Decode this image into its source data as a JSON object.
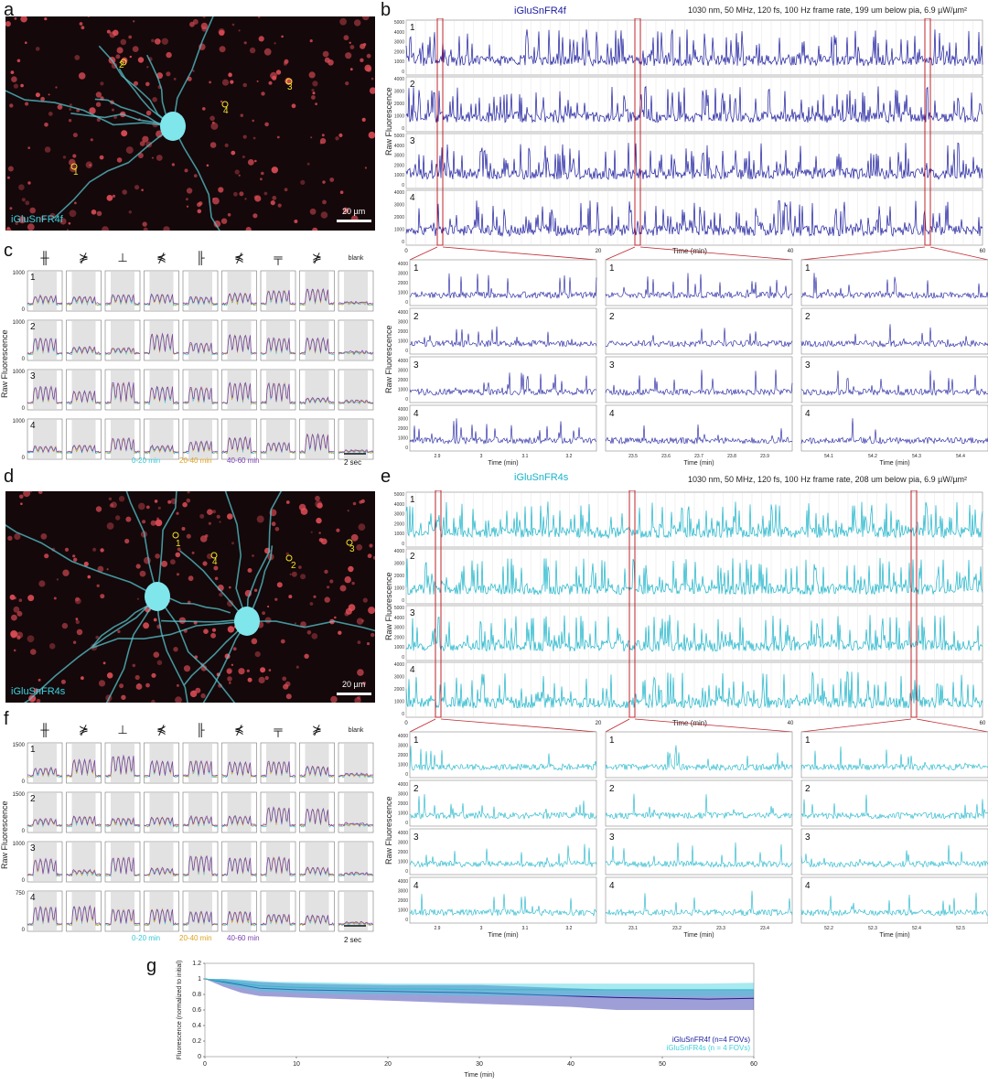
{
  "panels": {
    "a": "a",
    "b": "b",
    "c": "c",
    "d": "d",
    "e": "e",
    "f": "f",
    "g": "g"
  },
  "panel_a": {
    "label": "iGluSnFR4f",
    "scale": "20 µm",
    "rois": [
      "1",
      "2",
      "3",
      "4"
    ]
  },
  "panel_d": {
    "label": "iGluSnFR4s",
    "scale": "20 µm",
    "rois": [
      "1",
      "2",
      "3",
      "4"
    ]
  },
  "panel_b": {
    "title": "iGluSnFR4f",
    "title_color": "#1a1a9e",
    "header": "1030 nm, 50 MHz, 120 fs, 100 Hz frame rate, 199 um below pia, 6.9 µW/µm²",
    "ylabel": "Raw Fluorescence",
    "xlabel": "Time (min)",
    "xticks": [
      "0",
      "20",
      "40",
      "60"
    ],
    "rows": [
      "1",
      "2",
      "3",
      "4"
    ],
    "zoom_xlabel": "Time (min)",
    "zoom_ticks": [
      [
        "2.9",
        "3",
        "3.1",
        "3.2"
      ],
      [
        "23.5",
        "23.6",
        "23.7",
        "23.8",
        "23.9"
      ],
      [
        "54.1",
        "54.2",
        "54.3",
        "54.4"
      ]
    ]
  },
  "panel_e": {
    "title": "iGluSnFR4s",
    "title_color": "#19b3c9",
    "header": "1030 nm, 50 MHz, 120 fs, 100 Hz frame rate, 208 um below pia, 6.9 µW/µm²",
    "ylabel": "Raw Fluorescence",
    "xlabel": "Time (min)",
    "xticks": [
      "0",
      "20",
      "40",
      "60"
    ],
    "rows": [
      "1",
      "2",
      "3",
      "4"
    ],
    "zoom_xlabel": "Time (min)",
    "zoom_ticks": [
      [
        "2.9",
        "3",
        "3.1",
        "3.2"
      ],
      [
        "23.1",
        "23.2",
        "23.3",
        "23.4"
      ],
      [
        "52.2",
        "52.3",
        "52.4",
        "52.5"
      ]
    ]
  },
  "panel_c": {
    "ylabel": "Raw Fluorescence",
    "stimuli": [
      "╫",
      "⋡",
      "⊥",
      "⋠",
      "╟",
      "⋠",
      "╤",
      "⋡"
    ],
    "blank": "blank",
    "rows": [
      "1",
      "2",
      "3",
      "4"
    ],
    "ytick": [
      "1000",
      "1000",
      "1000",
      "1000"
    ],
    "legend": [
      "0-20 min",
      "20-40 min",
      "40-60 min"
    ],
    "legend_colors": [
      "#35c9d6",
      "#e0a21e",
      "#7a3fb3"
    ],
    "scalebar": "2 sec"
  },
  "panel_f": {
    "ylabel": "Raw Fluorescence",
    "stimuli": [
      "╫",
      "⋡",
      "⊥",
      "⋠",
      "╟",
      "⋠",
      "╤",
      "⋡"
    ],
    "blank": "blank",
    "rows": [
      "1",
      "2",
      "3",
      "4"
    ],
    "ytick": [
      "1500",
      "1500",
      "1000",
      "750"
    ],
    "legend": [
      "0-20 min",
      "20-40 min",
      "40-60 min"
    ],
    "legend_colors": [
      "#35c9d6",
      "#e0a21e",
      "#7a3fb3"
    ],
    "scalebar": "2 sec"
  },
  "chart_data": {
    "type": "line",
    "xlabel": "Time (min)",
    "ylabel": "Fluorescence (normalized to initial)",
    "xlim": [
      0,
      60
    ],
    "ylim": [
      0,
      1.2
    ],
    "xticks": [
      0,
      10,
      20,
      30,
      40,
      50,
      60
    ],
    "yticks": [
      0,
      0.2,
      0.4,
      0.6,
      0.8,
      1,
      1.2
    ],
    "legend_position": "bottom-right",
    "series": [
      {
        "name": "iGluSnFR4f (n=4 FOVs)",
        "color": "#2a2aa8",
        "x": [
          0,
          2,
          4,
          6,
          8,
          10,
          15,
          20,
          25,
          30,
          35,
          40,
          45,
          50,
          55,
          60
        ],
        "y": [
          1,
          0.96,
          0.92,
          0.88,
          0.87,
          0.86,
          0.85,
          0.84,
          0.83,
          0.82,
          0.8,
          0.78,
          0.76,
          0.75,
          0.74,
          0.75
        ],
        "lower": [
          1,
          0.9,
          0.82,
          0.78,
          0.77,
          0.76,
          0.74,
          0.72,
          0.7,
          0.68,
          0.66,
          0.64,
          0.6,
          0.6,
          0.6,
          0.6
        ],
        "upper": [
          1,
          1.0,
          0.98,
          0.96,
          0.95,
          0.94,
          0.93,
          0.92,
          0.92,
          0.92,
          0.9,
          0.88,
          0.86,
          0.86,
          0.86,
          0.86
        ]
      },
      {
        "name": "iGluSnFR4s (n = 4 FOVs)",
        "color": "#3fd0dd",
        "x": [
          0,
          2,
          4,
          6,
          8,
          10,
          15,
          20,
          25,
          30,
          35,
          40,
          45,
          50,
          55,
          60
        ],
        "y": [
          1,
          0.97,
          0.94,
          0.91,
          0.9,
          0.89,
          0.88,
          0.87,
          0.87,
          0.86,
          0.86,
          0.86,
          0.86,
          0.86,
          0.86,
          0.86
        ],
        "lower": [
          1,
          0.93,
          0.88,
          0.84,
          0.83,
          0.82,
          0.8,
          0.8,
          0.79,
          0.78,
          0.78,
          0.78,
          0.78,
          0.77,
          0.77,
          0.77
        ],
        "upper": [
          1,
          1.0,
          0.99,
          0.97,
          0.96,
          0.96,
          0.95,
          0.94,
          0.94,
          0.94,
          0.94,
          0.94,
          0.94,
          0.94,
          0.94,
          0.95
        ]
      }
    ]
  },
  "colors": {
    "iglu4f": "#1a1a9e",
    "iglu4s": "#19b3c9",
    "zoom_box": "#c0262e"
  }
}
